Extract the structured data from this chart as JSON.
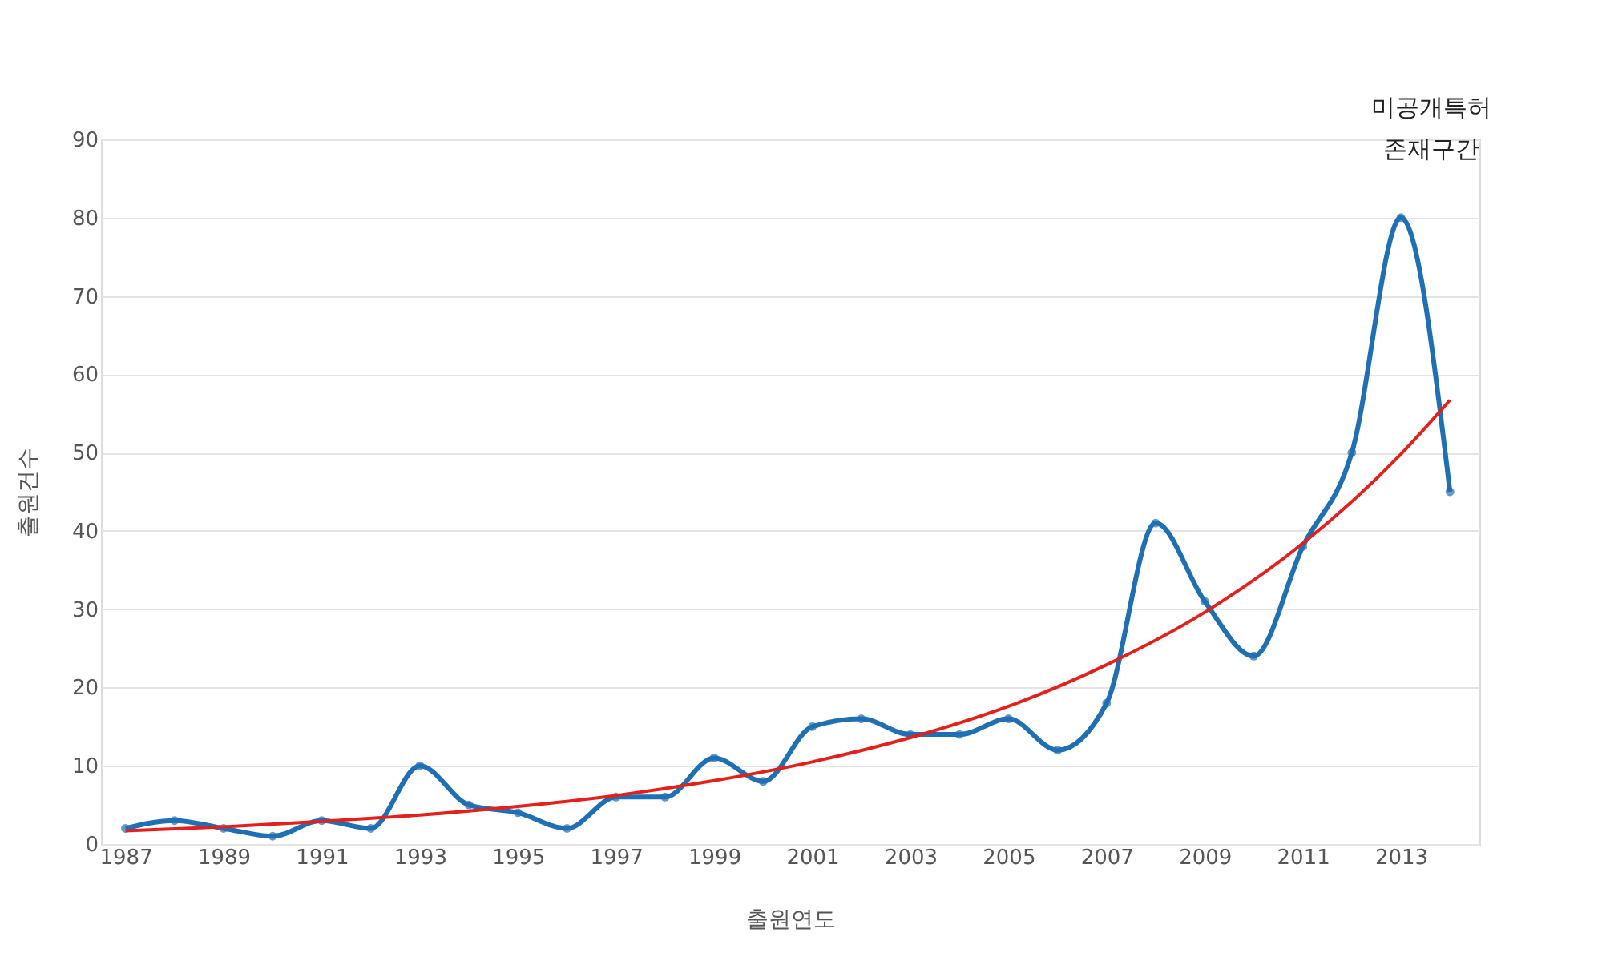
{
  "chart_data": {
    "type": "line",
    "xlabel": "출원연도",
    "ylabel": "출원건수",
    "annotations": [
      "미공개특허\n존재구간"
    ],
    "x": [
      1987,
      1988,
      1989,
      1990,
      1991,
      1992,
      1993,
      1994,
      1995,
      1996,
      1997,
      1998,
      1999,
      2000,
      2001,
      2002,
      2003,
      2004,
      2005,
      2006,
      2007,
      2008,
      2009,
      2010,
      2011,
      2012,
      2013,
      2014
    ],
    "series": [
      {
        "color": "#1f6fb5",
        "marker": "circle",
        "values": [
          2,
          3,
          2,
          1,
          3,
          2,
          10,
          5,
          4,
          2,
          6,
          6,
          11,
          8,
          15,
          16,
          14,
          14,
          16,
          12,
          18,
          41,
          31,
          24,
          38,
          50,
          80,
          45
        ]
      },
      {
        "type": "line",
        "color": "#e3201b",
        "marker": "none",
        "x": [
          1987,
          1989,
          1991,
          1993,
          1995,
          1997,
          1999,
          2001,
          2003,
          2005,
          2007,
          2009,
          2011,
          2013,
          2014
        ],
        "values": [
          1.7,
          2.2,
          2.9,
          3.7,
          4.8,
          6.2,
          8.1,
          10.5,
          13.6,
          17.6,
          22.9,
          29.6,
          38.4,
          49.8,
          56.7
        ]
      }
    ],
    "xlim": [
      1986.5,
      2014.6
    ],
    "xticks": [
      1987,
      1989,
      1991,
      1993,
      1995,
      1997,
      1999,
      2001,
      2003,
      2005,
      2007,
      2009,
      2011,
      2013
    ],
    "ylim": [
      0,
      90
    ],
    "yticks": [
      0,
      10,
      20,
      30,
      40,
      50,
      60,
      70,
      80,
      90
    ],
    "grid": "y"
  }
}
